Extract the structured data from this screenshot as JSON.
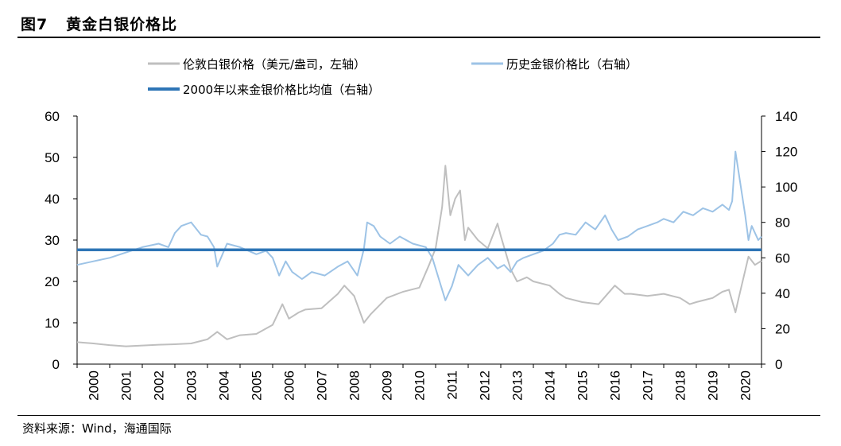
{
  "header": {
    "figure_title": "图7   黄金白银价格比"
  },
  "footer": {
    "source": "资料来源：Wind，海通国际"
  },
  "colors": {
    "silver_series": "#bfbfbf",
    "ratio_series": "#9dc3e6",
    "average_line": "#2e75b6"
  },
  "chart_data": {
    "type": "line",
    "title": "",
    "xlabel": "",
    "ylabel": "",
    "grid": false,
    "legend_placement": "top",
    "x_ticks": [
      "2000",
      "2001",
      "2002",
      "2003",
      "2004",
      "2005",
      "2006",
      "2007",
      "2008",
      "2009",
      "2010",
      "2011",
      "2012",
      "2013",
      "2014",
      "2015",
      "2016",
      "2017",
      "2018",
      "2019",
      "2020"
    ],
    "y_left": {
      "ylim": [
        0,
        60
      ],
      "ticks": [
        "0",
        "10",
        "20",
        "30",
        "40",
        "50",
        "60"
      ]
    },
    "y_right": {
      "ylim": [
        0,
        140
      ],
      "ticks": [
        "0",
        "20",
        "40",
        "60",
        "80",
        "100",
        "120",
        "140"
      ]
    },
    "xlim": [
      2000,
      2021
    ],
    "series": [
      {
        "name": "伦敦白银价格（美元/盎司，左轴）",
        "axis": "left",
        "x": [
          2000,
          2000.5,
          2001,
          2001.5,
          2002,
          2002.5,
          2003,
          2003.5,
          2004,
          2004.3,
          2004.6,
          2005,
          2005.5,
          2006,
          2006.3,
          2006.5,
          2006.8,
          2007,
          2007.5,
          2008,
          2008.2,
          2008.5,
          2008.8,
          2009,
          2009.5,
          2010,
          2010.5,
          2010.8,
          2011,
          2011.2,
          2011.3,
          2011.45,
          2011.6,
          2011.75,
          2011.9,
          2012,
          2012.3,
          2012.6,
          2012.9,
          2013,
          2013.3,
          2013.5,
          2013.8,
          2014,
          2014.5,
          2014.8,
          2015,
          2015.5,
          2016,
          2016.5,
          2016.8,
          2017,
          2017.5,
          2018,
          2018.5,
          2018.8,
          2019,
          2019.5,
          2019.8,
          2020,
          2020.2,
          2020.3,
          2020.6,
          2020.8,
          2021
        ],
        "values": [
          5.3,
          5.0,
          4.6,
          4.3,
          4.5,
          4.7,
          4.8,
          5.0,
          6.0,
          7.8,
          6.0,
          7.0,
          7.3,
          9.5,
          14.5,
          11.0,
          12.5,
          13.2,
          13.5,
          17.0,
          19.0,
          16.5,
          10.0,
          12.0,
          16.0,
          17.5,
          18.5,
          24.0,
          28.0,
          38.0,
          48.0,
          36.0,
          40.0,
          42.0,
          30.0,
          33.0,
          30.0,
          28.0,
          34.0,
          31.0,
          23.0,
          20.0,
          21.0,
          20.0,
          19.0,
          17.0,
          16.0,
          15.0,
          14.5,
          19.0,
          17.0,
          17.0,
          16.5,
          17.0,
          16.0,
          14.5,
          15.0,
          16.0,
          17.5,
          18.0,
          12.5,
          16.0,
          26.0,
          24.0,
          25.0
        ]
      },
      {
        "name": "历史金银价格比（右轴）",
        "axis": "right",
        "x": [
          2000,
          2000.5,
          2001,
          2001.5,
          2002,
          2002.5,
          2002.8,
          2003,
          2003.2,
          2003.5,
          2003.8,
          2004,
          2004.2,
          2004.3,
          2004.6,
          2005,
          2005.5,
          2005.8,
          2006,
          2006.2,
          2006.4,
          2006.6,
          2006.9,
          2007.2,
          2007.6,
          2008,
          2008.3,
          2008.6,
          2008.8,
          2008.9,
          2009.1,
          2009.3,
          2009.6,
          2009.9,
          2010.3,
          2010.7,
          2010.9,
          2011.1,
          2011.3,
          2011.5,
          2011.7,
          2012,
          2012.3,
          2012.6,
          2012.9,
          2013.1,
          2013.3,
          2013.5,
          2013.7,
          2014,
          2014.3,
          2014.6,
          2014.8,
          2015,
          2015.3,
          2015.6,
          2015.9,
          2016.2,
          2016.4,
          2016.6,
          2016.9,
          2017.2,
          2017.5,
          2017.8,
          2018,
          2018.3,
          2018.6,
          2018.9,
          2019.2,
          2019.5,
          2019.8,
          2020,
          2020.1,
          2020.2,
          2020.3,
          2020.4,
          2020.5,
          2020.6,
          2020.7,
          2020.8,
          2020.9,
          2021
        ],
        "values": [
          56,
          58,
          60,
          63,
          66,
          68,
          66,
          74,
          78,
          80,
          73,
          72,
          66,
          55,
          68,
          66,
          62,
          64,
          60,
          50,
          58,
          52,
          48,
          52,
          50,
          55,
          58,
          50,
          65,
          80,
          78,
          72,
          68,
          72,
          68,
          66,
          60,
          48,
          36,
          44,
          56,
          50,
          56,
          60,
          54,
          56,
          52,
          58,
          60,
          62,
          64,
          68,
          73,
          74,
          73,
          80,
          76,
          84,
          76,
          70,
          72,
          76,
          78,
          80,
          82,
          80,
          86,
          84,
          88,
          86,
          90,
          87,
          92,
          120,
          108,
          96,
          84,
          70,
          78,
          74,
          70,
          72
        ]
      },
      {
        "name": "2000年以来金银价格比均值（右轴）",
        "axis": "right",
        "x": [
          2000,
          2021
        ],
        "values": [
          64.5,
          64.5
        ]
      }
    ]
  }
}
